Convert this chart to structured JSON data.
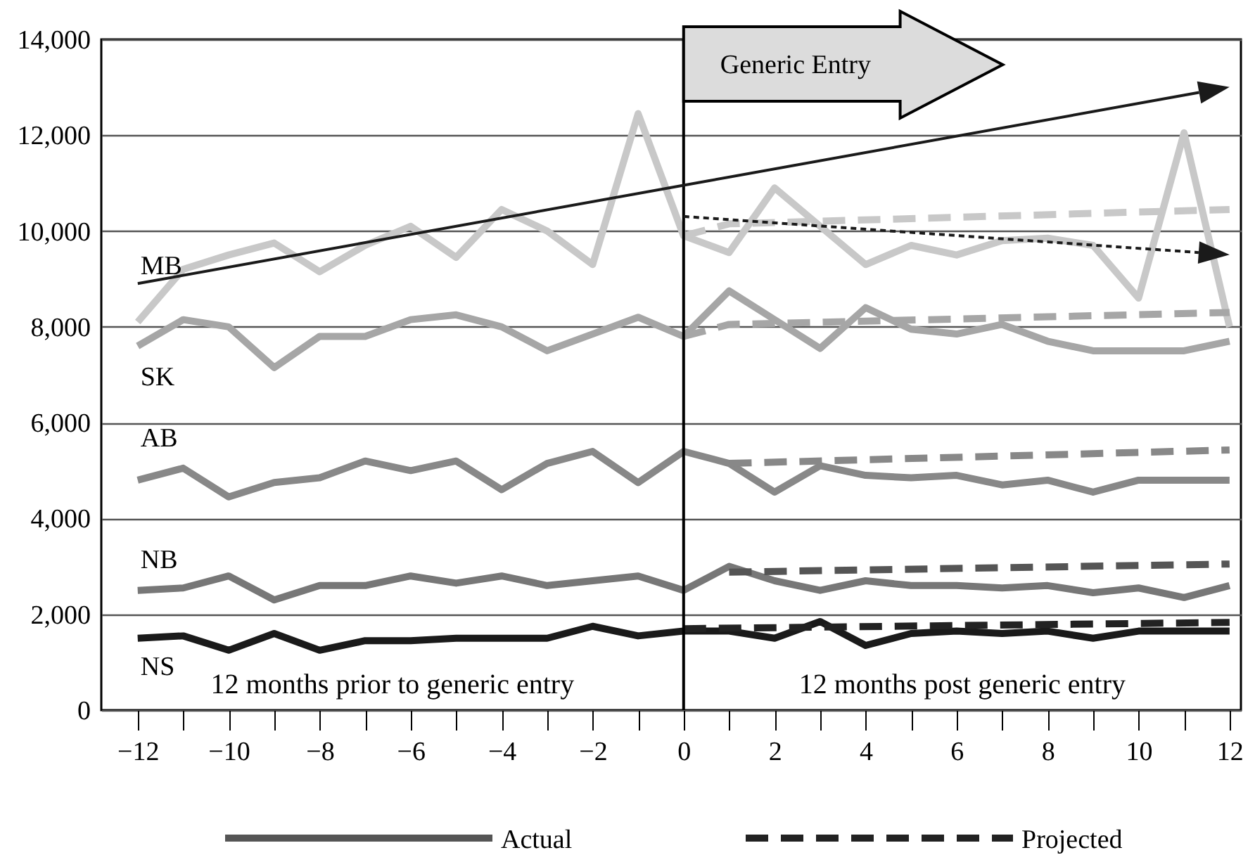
{
  "chart_data": {
    "type": "line",
    "x": [
      -12,
      -11,
      -10,
      -9,
      -8,
      -7,
      -6,
      -5,
      -4,
      -3,
      -2,
      -1,
      0,
      1,
      2,
      3,
      4,
      5,
      6,
      7,
      8,
      9,
      10,
      11,
      12
    ],
    "series": [
      {
        "name": "MB",
        "color": "#c8c8c8",
        "values": [
          8100,
          9200,
          9500,
          9750,
          9150,
          9700,
          10100,
          9450,
          10450,
          10000,
          9300,
          12450,
          9900,
          9550,
          10900,
          10100,
          9300,
          9700,
          9500,
          9800,
          9850,
          9700,
          8600,
          12050,
          8000
        ]
      },
      {
        "name": "SK",
        "color": "#a6a6a6",
        "values": [
          7600,
          8150,
          8000,
          7150,
          7800,
          7800,
          8150,
          8250,
          8000,
          7500,
          7850,
          8200,
          7800,
          8750,
          8150,
          7550,
          8400,
          7950,
          7850,
          8050,
          7700,
          7500,
          7500,
          7500,
          7700
        ]
      },
      {
        "name": "AB",
        "color": "#888888",
        "values": [
          4800,
          5050,
          4450,
          4750,
          4850,
          5200,
          5000,
          5200,
          4600,
          5150,
          5400,
          4750,
          5400,
          5150,
          4550,
          5100,
          4900,
          4850,
          4900,
          4700,
          4800,
          4550,
          4800,
          4800,
          4800
        ]
      },
      {
        "name": "NB",
        "color": "#777777",
        "values": [
          2500,
          2550,
          2800,
          2300,
          2600,
          2600,
          2800,
          2650,
          2800,
          2600,
          2700,
          2800,
          2500,
          3000,
          2700,
          2500,
          2700,
          2600,
          2600,
          2550,
          2600,
          2450,
          2550,
          2350,
          2600
        ]
      },
      {
        "name": "NS",
        "color": "#1a1a1a",
        "values": [
          1500,
          1550,
          1250,
          1600,
          1250,
          1450,
          1450,
          1500,
          1500,
          1500,
          1750,
          1550,
          1650,
          1650,
          1500,
          1850,
          1350,
          1600,
          1650,
          1600,
          1650,
          1500,
          1650,
          1650,
          1650
        ]
      },
      {
        "color": "#c8c8c8",
        "line_style": "dashed",
        "x": [
          0,
          1,
          12
        ],
        "values": [
          9900,
          10150,
          10450
        ]
      },
      {
        "color": "#a6a6a6",
        "line_style": "dashed",
        "x": [
          0,
          1,
          12
        ],
        "values": [
          7800,
          8050,
          8300
        ]
      },
      {
        "color": "#888888",
        "line_style": "dashed",
        "x": [
          1,
          12
        ],
        "values": [
          5150,
          5430
        ]
      },
      {
        "color": "#555555",
        "line_style": "dashed",
        "x": [
          1,
          12
        ],
        "values": [
          2880,
          3050
        ]
      },
      {
        "color": "#222222",
        "line_style": "dashed",
        "x": [
          0,
          12
        ],
        "values": [
          1700,
          1830
        ]
      }
    ],
    "xlim": [
      -12.8,
      12.25
    ],
    "xticks": [
      {
        "value": -12,
        "label": "−12"
      },
      {
        "value": -11,
        "label": null
      },
      {
        "value": -10,
        "label": "−10"
      },
      {
        "value": -9,
        "label": null
      },
      {
        "value": -8,
        "label": "−8"
      },
      {
        "value": -7,
        "label": null
      },
      {
        "value": -6,
        "label": "−6"
      },
      {
        "value": -5,
        "label": null
      },
      {
        "value": -4,
        "label": "−4"
      },
      {
        "value": -3,
        "label": null
      },
      {
        "value": -2,
        "label": "−2"
      },
      {
        "value": -1,
        "label": null
      },
      {
        "value": 0,
        "label": "0"
      },
      {
        "value": 1,
        "label": null
      },
      {
        "value": 2,
        "label": "2"
      },
      {
        "value": 3,
        "label": null
      },
      {
        "value": 4,
        "label": "4"
      },
      {
        "value": 5,
        "label": null
      },
      {
        "value": 6,
        "label": "6"
      },
      {
        "value": 7,
        "label": null
      },
      {
        "value": 8,
        "label": "8"
      },
      {
        "value": 9,
        "label": null
      },
      {
        "value": 10,
        "label": "10"
      },
      {
        "value": 11,
        "label": null
      },
      {
        "value": 12,
        "label": "12"
      }
    ],
    "ylim": [
      0,
      14000
    ],
    "yticks": [
      0,
      {
        "value": 2000,
        "label": "2,000"
      },
      {
        "value": 4000,
        "label": "4,000"
      },
      {
        "value": 6000,
        "label": "6,000"
      },
      {
        "value": 8000,
        "label": "8,000"
      },
      {
        "value": 10000,
        "label": "10,000"
      },
      {
        "value": 12000,
        "label": "12,000"
      },
      {
        "value": 14000,
        "label": "14,000"
      }
    ],
    "grid": "y",
    "line_style": "solid",
    "legend": "bottom",
    "ref_lines": [
      {
        "axis": "x",
        "value": 0,
        "color": "#000000"
      }
    ],
    "annotations": [
      "Generic Entry",
      "12 months prior to generic entry",
      "12 months post generic entry",
      "Actual",
      "Projected"
    ]
  }
}
